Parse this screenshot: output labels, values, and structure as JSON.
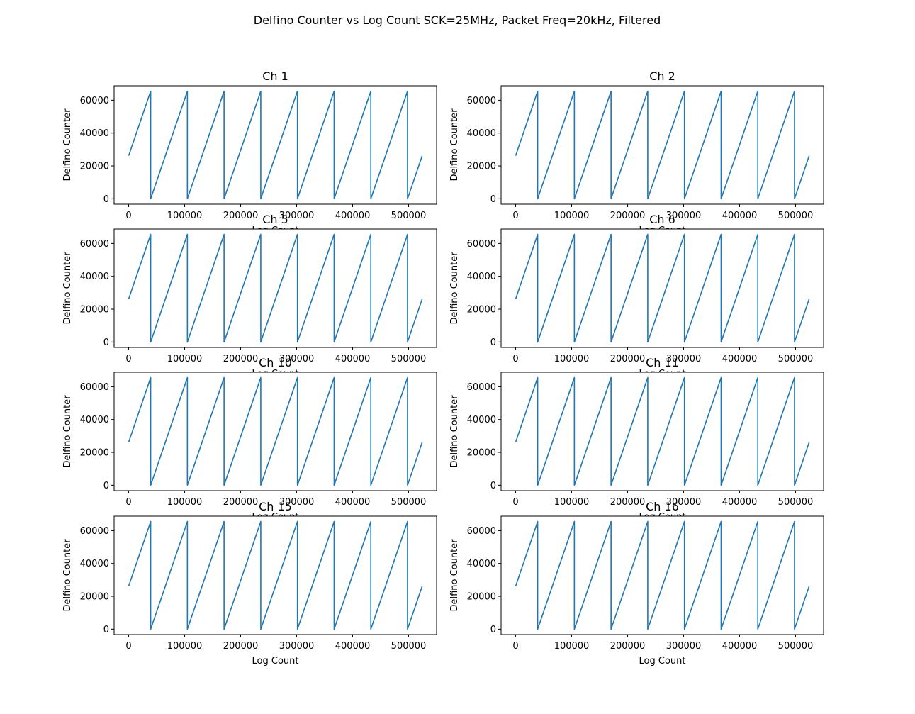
{
  "figure": {
    "suptitle": "Delfino Counter vs Log Count SCK=25MHz, Packet Freq=20kHz, Filtered"
  },
  "chart_data": [
    {
      "type": "line",
      "title": "Ch 1",
      "xlabel": "Log Count",
      "ylabel": "Delfino Counter",
      "xlim": [
        -26000,
        550000
      ],
      "ylim": [
        -3300,
        68800
      ],
      "xticks": [
        0,
        100000,
        200000,
        300000,
        400000,
        500000
      ],
      "yticks": [
        0,
        20000,
        40000,
        60000
      ],
      "series_color": "#1f77b4",
      "pattern": {
        "start": [
          0,
          26214
        ],
        "wrap_x": [
          39322,
          104858,
          170394,
          235930,
          301466,
          367002,
          432538,
          498074
        ],
        "peak": 65535,
        "end": [
          524288,
          26214
        ]
      }
    },
    {
      "type": "line",
      "title": "Ch 2",
      "xlabel": "Log Count",
      "ylabel": "Delfino Counter",
      "xlim": [
        -26000,
        550000
      ],
      "ylim": [
        -3300,
        68800
      ],
      "xticks": [
        0,
        100000,
        200000,
        300000,
        400000,
        500000
      ],
      "yticks": [
        0,
        20000,
        40000,
        60000
      ],
      "series_color": "#1f77b4",
      "pattern": {
        "start": [
          0,
          26214
        ],
        "wrap_x": [
          39322,
          104858,
          170394,
          235930,
          301466,
          367002,
          432538,
          498074
        ],
        "peak": 65535,
        "end": [
          524288,
          26214
        ]
      }
    },
    {
      "type": "line",
      "title": "Ch 5",
      "xlabel": "Log Count",
      "ylabel": "Delfino Counter",
      "xlim": [
        -26000,
        550000
      ],
      "ylim": [
        -3300,
        68800
      ],
      "xticks": [
        0,
        100000,
        200000,
        300000,
        400000,
        500000
      ],
      "yticks": [
        0,
        20000,
        40000,
        60000
      ],
      "series_color": "#1f77b4",
      "pattern": {
        "start": [
          0,
          26214
        ],
        "wrap_x": [
          39322,
          104858,
          170394,
          235930,
          301466,
          367002,
          432538,
          498074
        ],
        "peak": 65535,
        "end": [
          524288,
          26214
        ]
      }
    },
    {
      "type": "line",
      "title": "Ch 6",
      "xlabel": "Log Count",
      "ylabel": "Delfino Counter",
      "xlim": [
        -26000,
        550000
      ],
      "ylim": [
        -3300,
        68800
      ],
      "xticks": [
        0,
        100000,
        200000,
        300000,
        400000,
        500000
      ],
      "yticks": [
        0,
        20000,
        40000,
        60000
      ],
      "series_color": "#1f77b4",
      "pattern": {
        "start": [
          0,
          26214
        ],
        "wrap_x": [
          39322,
          104858,
          170394,
          235930,
          301466,
          367002,
          432538,
          498074
        ],
        "peak": 65535,
        "end": [
          524288,
          26214
        ]
      }
    },
    {
      "type": "line",
      "title": "Ch 10",
      "xlabel": "Log Count",
      "ylabel": "Delfino Counter",
      "xlim": [
        -26000,
        550000
      ],
      "ylim": [
        -3300,
        68800
      ],
      "xticks": [
        0,
        100000,
        200000,
        300000,
        400000,
        500000
      ],
      "yticks": [
        0,
        20000,
        40000,
        60000
      ],
      "series_color": "#1f77b4",
      "pattern": {
        "start": [
          0,
          26214
        ],
        "wrap_x": [
          39322,
          104858,
          170394,
          235930,
          301466,
          367002,
          432538,
          498074
        ],
        "peak": 65535,
        "end": [
          524288,
          26214
        ]
      }
    },
    {
      "type": "line",
      "title": "Ch 11",
      "xlabel": "Log Count",
      "ylabel": "Delfino Counter",
      "xlim": [
        -26000,
        550000
      ],
      "ylim": [
        -3300,
        68800
      ],
      "xticks": [
        0,
        100000,
        200000,
        300000,
        400000,
        500000
      ],
      "yticks": [
        0,
        20000,
        40000,
        60000
      ],
      "series_color": "#1f77b4",
      "pattern": {
        "start": [
          0,
          26214
        ],
        "wrap_x": [
          39322,
          104858,
          170394,
          235930,
          301466,
          367002,
          432538,
          498074
        ],
        "peak": 65535,
        "end": [
          524288,
          26214
        ]
      }
    },
    {
      "type": "line",
      "title": "Ch 15",
      "xlabel": "Log Count",
      "ylabel": "Delfino Counter",
      "xlim": [
        -26000,
        550000
      ],
      "ylim": [
        -3300,
        68800
      ],
      "xticks": [
        0,
        100000,
        200000,
        300000,
        400000,
        500000
      ],
      "yticks": [
        0,
        20000,
        40000,
        60000
      ],
      "series_color": "#1f77b4",
      "pattern": {
        "start": [
          0,
          26214
        ],
        "wrap_x": [
          39322,
          104858,
          170394,
          235930,
          301466,
          367002,
          432538,
          498074
        ],
        "peak": 65535,
        "end": [
          524288,
          26214
        ]
      }
    },
    {
      "type": "line",
      "title": "Ch 16",
      "xlabel": "Log Count",
      "ylabel": "Delfino Counter",
      "xlim": [
        -26000,
        550000
      ],
      "ylim": [
        -3300,
        68800
      ],
      "xticks": [
        0,
        100000,
        200000,
        300000,
        400000,
        500000
      ],
      "yticks": [
        0,
        20000,
        40000,
        60000
      ],
      "series_color": "#1f77b4",
      "pattern": {
        "start": [
          0,
          26214
        ],
        "wrap_x": [
          39322,
          104858,
          170394,
          235930,
          301466,
          367002,
          432538,
          498074
        ],
        "peak": 65535,
        "end": [
          524288,
          26214
        ]
      }
    }
  ]
}
